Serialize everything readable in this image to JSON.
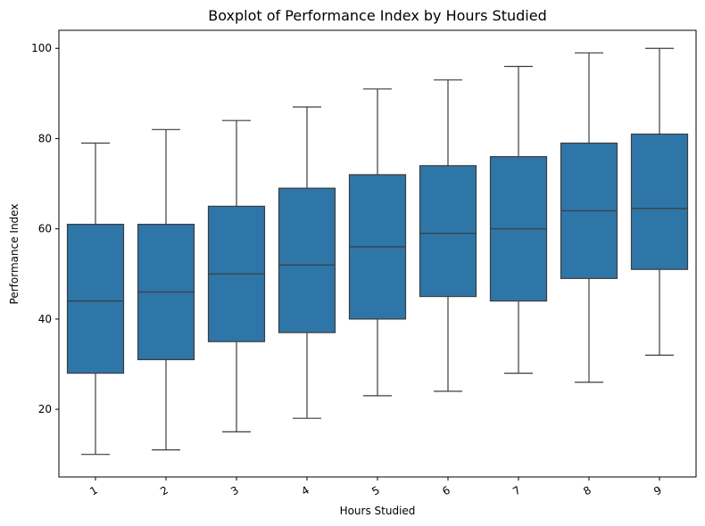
{
  "chart_data": {
    "type": "box",
    "title": "Boxplot of Performance Index by Hours Studied",
    "xlabel": "Hours Studied",
    "ylabel": "Performance Index",
    "categories": [
      "1",
      "2",
      "3",
      "4",
      "5",
      "6",
      "7",
      "8",
      "9"
    ],
    "ylim": [
      5,
      104
    ],
    "yticks": [
      20,
      40,
      60,
      80,
      100
    ],
    "grid": false,
    "box_color": "#2e75a8",
    "line_color": "#3d3d3d",
    "boxes": [
      {
        "category": "1",
        "whisker_low": 10,
        "q1": 28,
        "median": 44,
        "q3": 61,
        "whisker_high": 79
      },
      {
        "category": "2",
        "whisker_low": 11,
        "q1": 31,
        "median": 46,
        "q3": 61,
        "whisker_high": 82
      },
      {
        "category": "3",
        "whisker_low": 15,
        "q1": 35,
        "median": 50,
        "q3": 65,
        "whisker_high": 84
      },
      {
        "category": "4",
        "whisker_low": 18,
        "q1": 37,
        "median": 52,
        "q3": 69,
        "whisker_high": 87
      },
      {
        "category": "5",
        "whisker_low": 23,
        "q1": 40,
        "median": 56,
        "q3": 72,
        "whisker_high": 91
      },
      {
        "category": "6",
        "whisker_low": 24,
        "q1": 45,
        "median": 59,
        "q3": 74,
        "whisker_high": 93
      },
      {
        "category": "7",
        "whisker_low": 28,
        "q1": 44,
        "median": 60,
        "q3": 76,
        "whisker_high": 96
      },
      {
        "category": "8",
        "whisker_low": 26,
        "q1": 49,
        "median": 64,
        "q3": 79,
        "whisker_high": 99
      },
      {
        "category": "9",
        "whisker_low": 32,
        "q1": 51,
        "median": 64.5,
        "q3": 81,
        "whisker_high": 100
      }
    ]
  }
}
